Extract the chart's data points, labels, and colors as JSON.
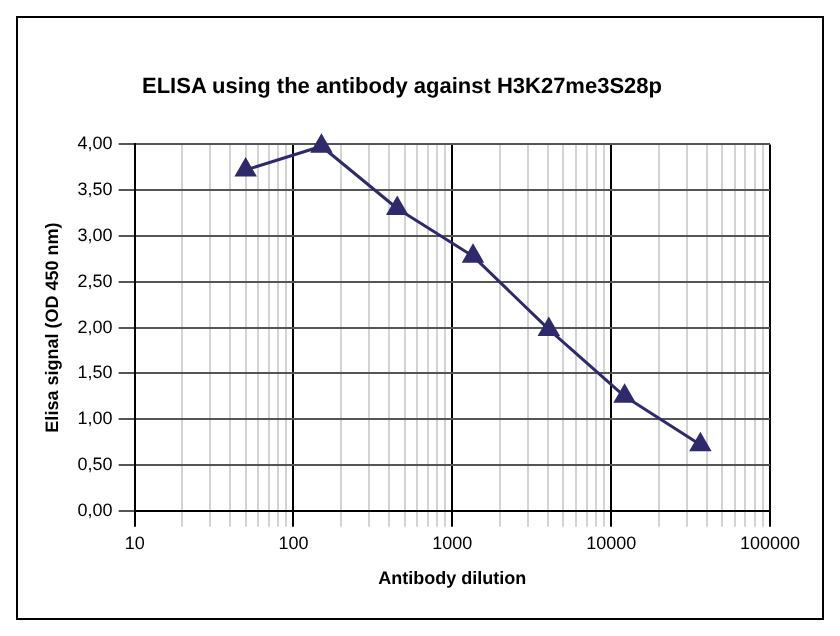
{
  "chart_data": {
    "type": "line",
    "title": "ELISA using the antibody against H3K27me3S28p",
    "xlabel": "Antibody dilution",
    "ylabel": "Elisa signal (OD 450 nm)",
    "x": [
      50,
      150,
      450,
      1350,
      4050,
      12150,
      36450
    ],
    "series": [
      {
        "color": "#2e2a6b",
        "values": [
          3.72,
          3.98,
          3.3,
          2.78,
          1.98,
          1.25,
          0.72
        ]
      }
    ],
    "log": "x",
    "xlim": [
      10,
      100000
    ],
    "xticks": [
      10,
      {
        "value": 20,
        "label": null
      },
      {
        "value": 30,
        "label": null
      },
      {
        "value": 40,
        "label": null
      },
      {
        "value": 50,
        "label": null
      },
      {
        "value": 60,
        "label": null
      },
      {
        "value": 70,
        "label": null
      },
      {
        "value": 80,
        "label": null
      },
      {
        "value": 90,
        "label": null
      },
      100,
      {
        "value": 200,
        "label": null
      },
      {
        "value": 300,
        "label": null
      },
      {
        "value": 400,
        "label": null
      },
      {
        "value": 500,
        "label": null
      },
      {
        "value": 600,
        "label": null
      },
      {
        "value": 700,
        "label": null
      },
      {
        "value": 800,
        "label": null
      },
      {
        "value": 900,
        "label": null
      },
      1000,
      {
        "value": 2000,
        "label": null
      },
      {
        "value": 3000,
        "label": null
      },
      {
        "value": 4000,
        "label": null
      },
      {
        "value": 5000,
        "label": null
      },
      {
        "value": 6000,
        "label": null
      },
      {
        "value": 7000,
        "label": null
      },
      {
        "value": 8000,
        "label": null
      },
      {
        "value": 9000,
        "label": null
      },
      10000,
      {
        "value": 20000,
        "label": null
      },
      {
        "value": 30000,
        "label": null
      },
      {
        "value": 40000,
        "label": null
      },
      {
        "value": 50000,
        "label": null
      },
      {
        "value": 60000,
        "label": null
      },
      {
        "value": 70000,
        "label": null
      },
      {
        "value": 80000,
        "label": null
      },
      {
        "value": 90000,
        "label": null
      },
      100000
    ],
    "ylim": [
      0,
      4
    ],
    "yticks": [
      {
        "value": 0,
        "label": "0,00"
      },
      {
        "value": 0.5,
        "label": "0,50"
      },
      {
        "value": 1,
        "label": "1,00"
      },
      {
        "value": 1.5,
        "label": "1,50"
      },
      {
        "value": 2,
        "label": "2,00"
      },
      {
        "value": 2.5,
        "label": "2,50"
      },
      {
        "value": 3,
        "label": "3,00"
      },
      {
        "value": 3.5,
        "label": "3,50"
      },
      {
        "value": 4,
        "label": "4,00"
      }
    ],
    "grid": true,
    "marker": "triangle",
    "line_style": "solid",
    "legend": false
  }
}
